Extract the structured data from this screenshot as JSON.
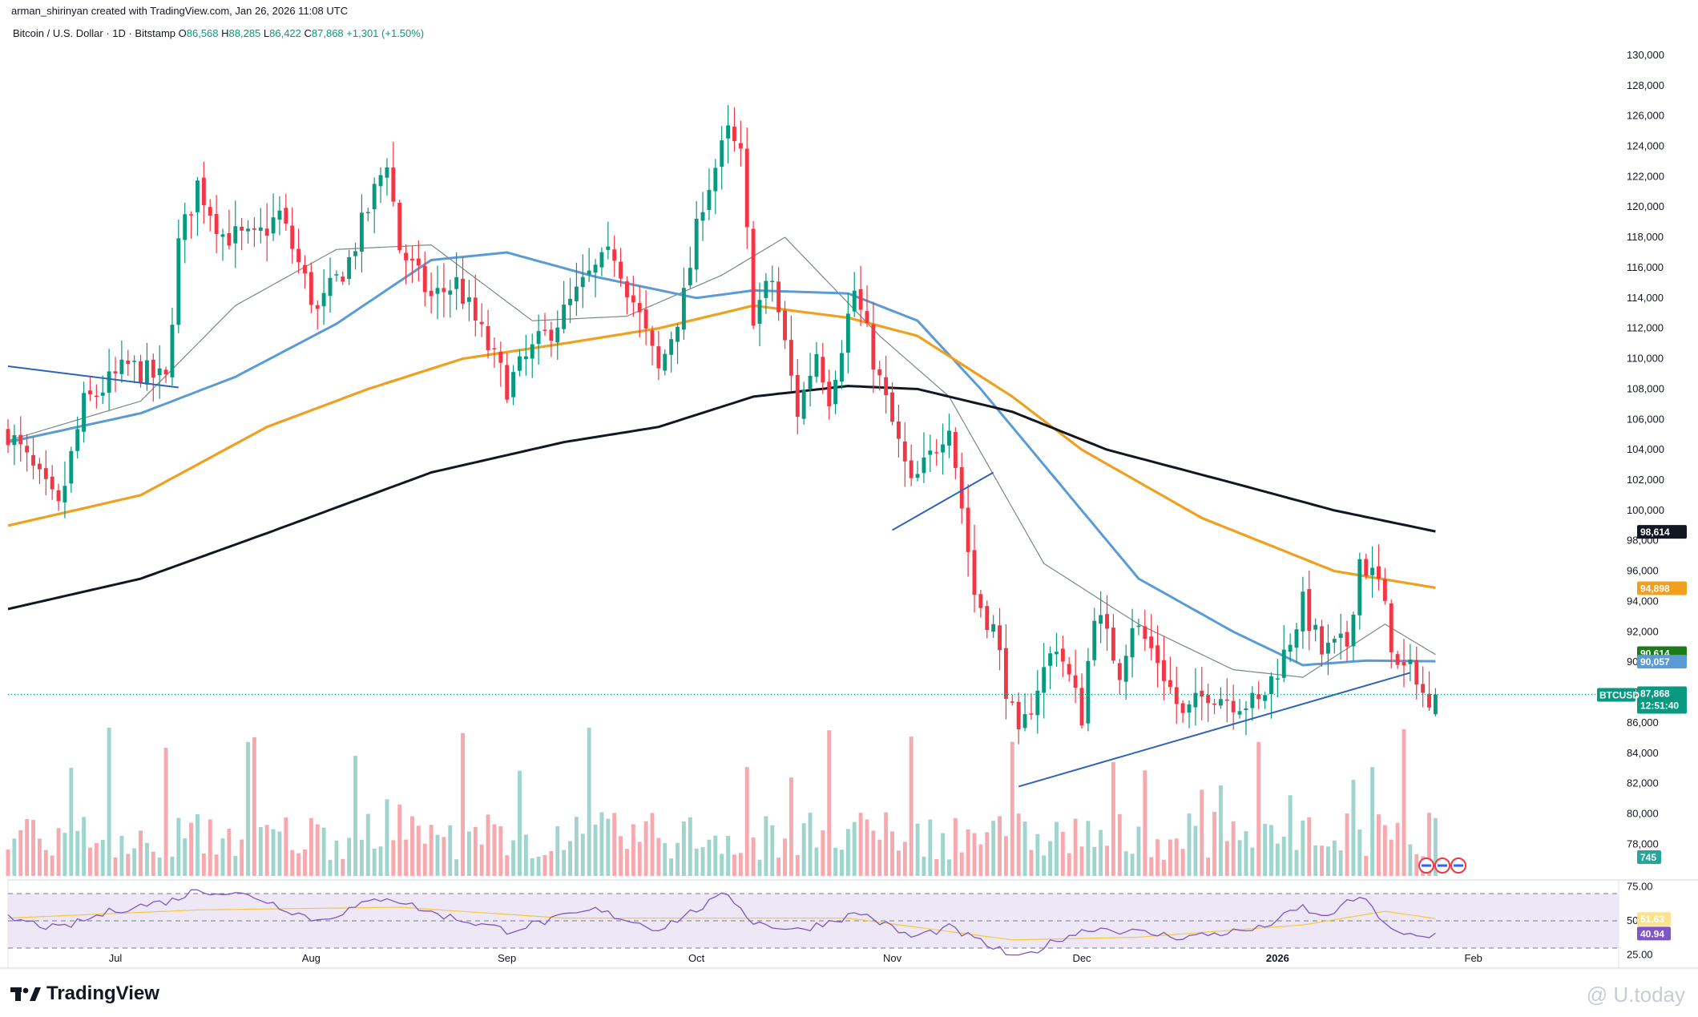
{
  "header": {
    "credit": "arman_shirinyan created with TradingView.com, Jan 26, 2026 11:08 UTC",
    "symbol_line": "Bitcoin / U.S. Dollar · 1D · Bitstamp",
    "ohlc": [
      {
        "label": "O",
        "value": "86,568"
      },
      {
        "label": "H",
        "value": "88,285"
      },
      {
        "label": "L",
        "value": "86,422"
      },
      {
        "label": "C",
        "value": "87,868"
      }
    ],
    "change": "+1,301 (+1.50%)"
  },
  "footer": {
    "brand": "TradingView",
    "watermark": "@ U.today"
  },
  "colors": {
    "up": "#089981",
    "down": "#f23645",
    "up_volume": "#9fd5cc",
    "down_volume": "#f6a9ae",
    "ma20": "#7a8a7e",
    "ma50": "#5b9bd5",
    "ma100": "#f0a020",
    "ma200": "#131722",
    "trendline": "#2e64b7",
    "rsi": "#7e57c2",
    "rsi_ma": "#f5c842",
    "rsi_band": "#ede7f6"
  },
  "chart_data": [
    {
      "type": "candlestick",
      "title": "Bitcoin / U.S. Dollar · 1D · Bitstamp",
      "y_axis": {
        "ylim": [
          75800,
          131000
        ],
        "ticks": [
          78000,
          80000,
          82000,
          84000,
          86000,
          88000,
          90000,
          92000,
          94000,
          96000,
          98000,
          100000,
          102000,
          104000,
          106000,
          108000,
          110000,
          112000,
          114000,
          116000,
          118000,
          120000,
          122000,
          124000,
          126000,
          128000,
          130000
        ],
        "tick_labels": [
          "78,000",
          "80,000",
          "82,000",
          "84,000",
          "86,000",
          "88,000",
          "90,000",
          "92,000",
          "94,000",
          "96,000",
          "98,000",
          "100,000",
          "102,000",
          "104,000",
          "106,000",
          "108,000",
          "110,000",
          "112,000",
          "114,000",
          "116,000",
          "118,000",
          "120,000",
          "122,000",
          "124,000",
          "126,000",
          "128,000",
          "130,000"
        ]
      },
      "x_axis": {
        "labels": [
          {
            "text": "Jul",
            "date": "2025-07-01"
          },
          {
            "text": "Aug",
            "date": "2025-08-01"
          },
          {
            "text": "Sep",
            "date": "2025-09-01"
          },
          {
            "text": "Oct",
            "date": "2025-10-01"
          },
          {
            "text": "Nov",
            "date": "2025-11-01"
          },
          {
            "text": "Dec",
            "date": "2025-12-01"
          },
          {
            "text": "2026",
            "date": "2026-01-01"
          },
          {
            "text": "Feb",
            "date": "2026-02-01"
          }
        ],
        "range": [
          "2025-06-14",
          "2026-02-24"
        ]
      },
      "anchors": [
        {
          "date": "2025-06-14",
          "price": 105200
        },
        {
          "date": "2025-06-22",
          "price": 100000
        },
        {
          "date": "2025-06-26",
          "price": 107000
        },
        {
          "date": "2025-07-03",
          "price": 109500
        },
        {
          "date": "2025-07-09",
          "price": 108500
        },
        {
          "date": "2025-07-11",
          "price": 117500
        },
        {
          "date": "2025-07-14",
          "price": 121500
        },
        {
          "date": "2025-07-18",
          "price": 118200
        },
        {
          "date": "2025-07-23",
          "price": 117800
        },
        {
          "date": "2025-07-27",
          "price": 119500
        },
        {
          "date": "2025-08-02",
          "price": 113000
        },
        {
          "date": "2025-08-04",
          "price": 114500
        },
        {
          "date": "2025-08-07",
          "price": 116500
        },
        {
          "date": "2025-08-13",
          "price": 123200
        },
        {
          "date": "2025-08-15",
          "price": 117300
        },
        {
          "date": "2025-08-20",
          "price": 114000
        },
        {
          "date": "2025-08-24",
          "price": 115000
        },
        {
          "date": "2025-09-01",
          "price": 108200
        },
        {
          "date": "2025-09-05",
          "price": 110500
        },
        {
          "date": "2025-09-10",
          "price": 113000
        },
        {
          "date": "2025-09-14",
          "price": 115400
        },
        {
          "date": "2025-09-18",
          "price": 117000
        },
        {
          "date": "2025-09-22",
          "price": 112700
        },
        {
          "date": "2025-09-25",
          "price": 109100
        },
        {
          "date": "2025-09-29",
          "price": 114000
        },
        {
          "date": "2025-10-02",
          "price": 120500
        },
        {
          "date": "2025-10-06",
          "price": 124800
        },
        {
          "date": "2025-10-08",
          "price": 123200
        },
        {
          "date": "2025-10-10",
          "price": 113000
        },
        {
          "date": "2025-10-13",
          "price": 115200
        },
        {
          "date": "2025-10-17",
          "price": 106500
        },
        {
          "date": "2025-10-20",
          "price": 110500
        },
        {
          "date": "2025-10-22",
          "price": 107600
        },
        {
          "date": "2025-10-26",
          "price": 114500
        },
        {
          "date": "2025-10-30",
          "price": 108500
        },
        {
          "date": "2025-11-04",
          "price": 101500
        },
        {
          "date": "2025-11-07",
          "price": 103500
        },
        {
          "date": "2025-11-10",
          "price": 106000
        },
        {
          "date": "2025-11-14",
          "price": 94500
        },
        {
          "date": "2025-11-17",
          "price": 92200
        },
        {
          "date": "2025-11-21",
          "price": 84700
        },
        {
          "date": "2025-11-24",
          "price": 88500
        },
        {
          "date": "2025-11-27",
          "price": 91300
        },
        {
          "date": "2025-12-01",
          "price": 86500
        },
        {
          "date": "2025-12-03",
          "price": 93500
        },
        {
          "date": "2025-12-07",
          "price": 89500
        },
        {
          "date": "2025-12-09",
          "price": 92700
        },
        {
          "date": "2025-12-13",
          "price": 90200
        },
        {
          "date": "2025-12-17",
          "price": 86300
        },
        {
          "date": "2025-12-21",
          "price": 88100
        },
        {
          "date": "2025-12-25",
          "price": 87500
        },
        {
          "date": "2025-12-29",
          "price": 87200
        },
        {
          "date": "2026-01-02",
          "price": 90500
        },
        {
          "date": "2026-01-05",
          "price": 93800
        },
        {
          "date": "2026-01-08",
          "price": 90600
        },
        {
          "date": "2026-01-12",
          "price": 91200
        },
        {
          "date": "2026-01-14",
          "price": 96800
        },
        {
          "date": "2026-01-17",
          "price": 95200
        },
        {
          "date": "2026-01-20",
          "price": 89500
        },
        {
          "date": "2026-01-23",
          "price": 89300
        },
        {
          "date": "2026-01-25",
          "price": 86600
        },
        {
          "date": "2026-01-26",
          "price": 87868
        }
      ],
      "moving_averages": [
        {
          "name": "MA 20",
          "last": null,
          "points": [
            [
              "2025-06-14",
              104600
            ],
            [
              "2025-07-05",
              107200
            ],
            [
              "2025-07-20",
              113500
            ],
            [
              "2025-08-05",
              117200
            ],
            [
              "2025-08-20",
              117500
            ],
            [
              "2025-09-05",
              112500
            ],
            [
              "2025-09-20",
              112800
            ],
            [
              "2025-10-05",
              115500
            ],
            [
              "2025-10-15",
              118000
            ],
            [
              "2025-10-30",
              111500
            ],
            [
              "2025-11-10",
              107500
            ],
            [
              "2025-11-25",
              96500
            ],
            [
              "2025-12-10",
              92500
            ],
            [
              "2025-12-25",
              89500
            ],
            [
              "2026-01-05",
              89000
            ],
            [
              "2026-01-18",
              92500
            ],
            [
              "2026-01-26",
              90500
            ]
          ]
        },
        {
          "name": "MA 50",
          "last": "90,057",
          "points": [
            [
              "2025-06-14",
              104500
            ],
            [
              "2025-07-05",
              106400
            ],
            [
              "2025-07-20",
              108800
            ],
            [
              "2025-08-05",
              112300
            ],
            [
              "2025-08-20",
              116500
            ],
            [
              "2025-09-01",
              117000
            ],
            [
              "2025-09-15",
              115400
            ],
            [
              "2025-10-01",
              114000
            ],
            [
              "2025-10-10",
              114500
            ],
            [
              "2025-10-25",
              114300
            ],
            [
              "2025-11-05",
              112500
            ],
            [
              "2025-11-15",
              108000
            ],
            [
              "2025-11-25",
              103000
            ],
            [
              "2025-12-10",
              95500
            ],
            [
              "2025-12-25",
              92000
            ],
            [
              "2026-01-05",
              89800
            ],
            [
              "2026-01-15",
              90100
            ],
            [
              "2026-01-26",
              90057
            ]
          ]
        },
        {
          "name": "MA 100",
          "last": "94,898",
          "points": [
            [
              "2025-06-14",
              99000
            ],
            [
              "2025-07-05",
              101000
            ],
            [
              "2025-07-25",
              105500
            ],
            [
              "2025-08-10",
              108000
            ],
            [
              "2025-08-25",
              110000
            ],
            [
              "2025-09-10",
              111000
            ],
            [
              "2025-09-25",
              112000
            ],
            [
              "2025-10-10",
              113500
            ],
            [
              "2025-10-25",
              112700
            ],
            [
              "2025-11-05",
              111500
            ],
            [
              "2025-11-20",
              107500
            ],
            [
              "2025-12-01",
              104000
            ],
            [
              "2025-12-20",
              99500
            ],
            [
              "2026-01-10",
              96000
            ],
            [
              "2026-01-26",
              94898
            ]
          ]
        },
        {
          "name": "MA 200",
          "last": "98,614",
          "points": [
            [
              "2025-06-14",
              93500
            ],
            [
              "2025-07-05",
              95500
            ],
            [
              "2025-07-25",
              98500
            ],
            [
              "2025-08-20",
              102500
            ],
            [
              "2025-09-10",
              104500
            ],
            [
              "2025-09-25",
              105500
            ],
            [
              "2025-10-10",
              107500
            ],
            [
              "2025-10-25",
              108200
            ],
            [
              "2025-11-05",
              108000
            ],
            [
              "2025-11-20",
              106500
            ],
            [
              "2025-12-05",
              104000
            ],
            [
              "2025-12-25",
              101800
            ],
            [
              "2026-01-10",
              100000
            ],
            [
              "2026-01-26",
              98614
            ]
          ]
        }
      ],
      "trendlines": [
        {
          "from": [
            "2025-06-14",
            109500
          ],
          "to": [
            "2025-07-11",
            108100
          ]
        },
        {
          "from": [
            "2025-11-01",
            98700
          ],
          "to": [
            "2025-11-17",
            102500
          ]
        },
        {
          "from": [
            "2025-11-21",
            81800
          ],
          "to": [
            "2026-01-22",
            89300
          ]
        }
      ],
      "price_tags": [
        {
          "value": "98,614",
          "price": 98614,
          "color": "#131722"
        },
        {
          "value": "94,898",
          "price": 94898,
          "color": "#f0a020"
        },
        {
          "value": "90,614",
          "price": 90614,
          "color": "#1b7a1b"
        },
        {
          "value": "90,057",
          "price": 90057,
          "color": "#5b9bd5"
        },
        {
          "value": "87,868",
          "price": 87868,
          "color": "#089981"
        }
      ],
      "last_price_label": {
        "symbol": "BTCUSD",
        "countdown": "12:51:40",
        "price": 87868
      },
      "volume_tag": "745"
    },
    {
      "type": "line",
      "name": "RSI",
      "y_axis": {
        "ylim": [
          20,
          80
        ],
        "ticks": [
          25,
          50,
          75
        ],
        "tick_labels": [
          "25.00",
          "50.00",
          "75.00"
        ]
      },
      "bands": [
        30,
        70
      ],
      "rsi_anchors": [
        [
          "2025-06-14",
          52
        ],
        [
          "2025-06-22",
          44
        ],
        [
          "2025-07-01",
          58
        ],
        [
          "2025-07-10",
          65
        ],
        [
          "2025-07-14",
          73
        ],
        [
          "2025-07-23",
          68
        ],
        [
          "2025-08-02",
          50
        ],
        [
          "2025-08-13",
          68
        ],
        [
          "2025-08-20",
          56
        ],
        [
          "2025-09-01",
          43
        ],
        [
          "2025-09-15",
          58
        ],
        [
          "2025-09-25",
          44
        ],
        [
          "2025-10-06",
          70
        ],
        [
          "2025-10-10",
          49
        ],
        [
          "2025-10-17",
          43
        ],
        [
          "2025-10-27",
          56
        ],
        [
          "2025-11-04",
          38
        ],
        [
          "2025-11-10",
          45
        ],
        [
          "2025-11-21",
          22
        ],
        [
          "2025-11-28",
          38
        ],
        [
          "2025-12-03",
          45
        ],
        [
          "2025-12-17",
          38
        ],
        [
          "2025-12-29",
          44
        ],
        [
          "2026-01-05",
          60
        ],
        [
          "2026-01-08",
          52
        ],
        [
          "2026-01-14",
          68
        ],
        [
          "2026-01-20",
          40
        ],
        [
          "2026-01-25",
          37
        ],
        [
          "2026-01-26",
          40.94
        ]
      ],
      "rsi_ma_anchors": [
        [
          "2025-06-14",
          52
        ],
        [
          "2025-07-14",
          58
        ],
        [
          "2025-08-15",
          60
        ],
        [
          "2025-09-10",
          52
        ],
        [
          "2025-10-05",
          52
        ],
        [
          "2025-10-25",
          52
        ],
        [
          "2025-11-20",
          36
        ],
        [
          "2025-12-10",
          38
        ],
        [
          "2026-01-05",
          47
        ],
        [
          "2026-01-18",
          57
        ],
        [
          "2026-01-26",
          51.63
        ]
      ],
      "last_values": {
        "rsi": "40.94",
        "rsi_ma": "51.63"
      }
    }
  ]
}
